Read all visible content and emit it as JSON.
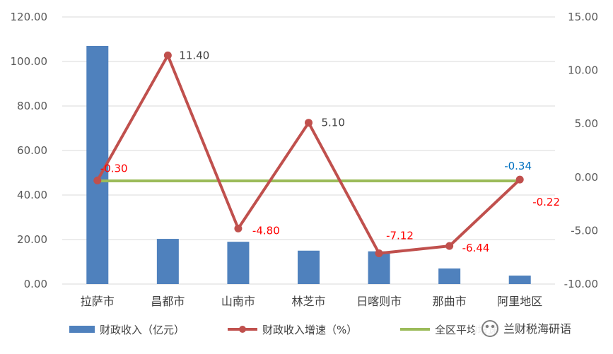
{
  "colors": {
    "bar": "#4f81bd",
    "growth_line": "#c0504d",
    "avg_line": "#9bbb59",
    "grid": "#d9d9d9",
    "label_red": "#ff0000",
    "label_dark": "#404040",
    "label_blue": "#0070c0"
  },
  "chart_data": {
    "type": "bar",
    "categories": [
      "拉萨市",
      "昌都市",
      "山南市",
      "林芝市",
      "日喀则市",
      "那曲市",
      "阿里地区"
    ],
    "y_left": {
      "min": 0,
      "max": 120,
      "step": 20,
      "tick_labels": [
        "0.00",
        "20.00",
        "40.00",
        "60.00",
        "80.00",
        "100.00",
        "120.00"
      ]
    },
    "y_right": {
      "min": -10,
      "max": 15,
      "step": 5,
      "tick_labels": [
        "-10.00",
        "-5.00",
        "0.00",
        "5.00",
        "10.00",
        "15.00"
      ]
    },
    "grid": true,
    "legend_position": "bottom",
    "series": [
      {
        "name": "财政收入（亿元）",
        "type": "bar",
        "axis": "left",
        "values": [
          107,
          20.3,
          19,
          15,
          14.7,
          7,
          3.8
        ]
      },
      {
        "name": "财政收入增速（%）",
        "type": "line",
        "axis": "right",
        "markers": true,
        "values": [
          -0.3,
          11.4,
          -4.8,
          5.1,
          -7.12,
          -6.44,
          -0.22
        ],
        "labels": [
          "-0.30",
          "11.40",
          "-4.80",
          "5.10",
          "-7.12",
          "-6.44",
          "-0.22"
        ],
        "label_colors": [
          "red",
          "dark",
          "red",
          "dark",
          "red",
          "red",
          "red"
        ]
      },
      {
        "name": "全区平均增速（%）",
        "type": "line",
        "axis": "right",
        "values": [
          -0.34,
          -0.34,
          -0.34,
          -0.34,
          -0.34,
          -0.34,
          -0.34
        ],
        "end_label": "-0.34"
      }
    ]
  },
  "watermark": "兰财税海研语"
}
